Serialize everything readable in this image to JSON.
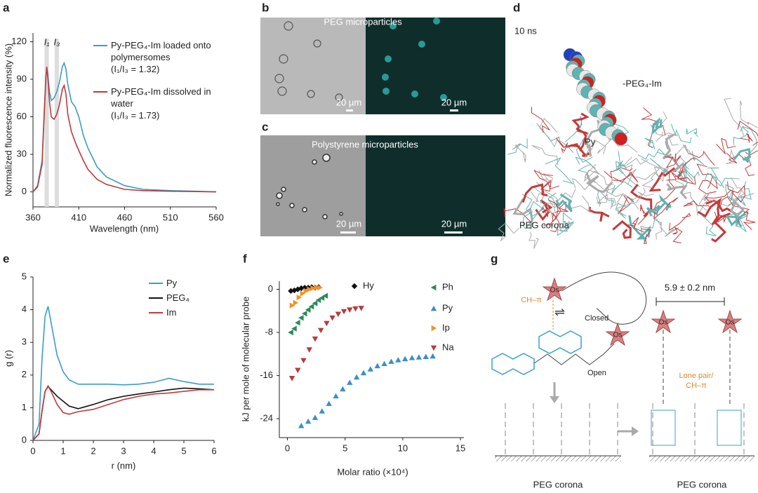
{
  "chart_data": [
    {
      "type": "line",
      "panel": "a",
      "xlabel": "Wavelength (nm)",
      "ylabel": "Normalized fluorescence intensity (%)",
      "x": [
        360,
        365,
        370,
        372,
        374,
        375,
        376,
        378,
        380,
        383,
        386,
        389,
        392,
        394,
        396,
        398,
        402,
        406,
        410,
        415,
        420,
        430,
        440,
        460,
        480,
        510,
        560
      ],
      "series": [
        {
          "name": "Py-PEG₄-Im loaded onto polymersomes",
          "note": "(I₁/I₃ = 1.32)",
          "color": "#3a9dc7",
          "values": [
            0,
            5,
            25,
            60,
            92,
            99,
            95,
            80,
            73,
            75,
            80,
            88,
            100,
            103,
            98,
            86,
            72,
            68,
            60,
            45,
            35,
            20,
            12,
            5,
            2,
            1,
            0
          ]
        },
        {
          "name": "Py-PEG₄-Im dissolved in water",
          "note": "(I₁/I₃ = 1.73)",
          "color": "#c0393b",
          "values": [
            0,
            4,
            22,
            58,
            90,
            100,
            93,
            72,
            60,
            58,
            62,
            70,
            82,
            85,
            78,
            62,
            48,
            40,
            33,
            25,
            18,
            10,
            6,
            2,
            1,
            0.5,
            0
          ]
        }
      ],
      "bands": [
        {
          "value": 375,
          "label": "I₁"
        },
        {
          "value": 386,
          "label": "I₃"
        }
      ],
      "xlim": [
        360,
        560
      ],
      "xticks": [
        360,
        410,
        460,
        510,
        560
      ],
      "ylim": [
        -12,
        127
      ],
      "yticks": [
        0,
        30,
        60,
        90,
        120
      ]
    },
    {
      "type": "line",
      "panel": "e",
      "xlabel": "r (nm)",
      "ylabel": "g (r)",
      "x": [
        0,
        0.2,
        0.3,
        0.4,
        0.5,
        0.6,
        0.8,
        1,
        1.2,
        1.5,
        2,
        2.5,
        3,
        3.5,
        4,
        4.5,
        5,
        5.5,
        6
      ],
      "series": [
        {
          "name": "Py",
          "color": "#3a9dc7",
          "values": [
            0,
            0.5,
            2.5,
            3.8,
            4.1,
            3.6,
            2.6,
            2.1,
            1.85,
            1.72,
            1.72,
            1.72,
            1.7,
            1.72,
            1.78,
            1.9,
            1.8,
            1.72,
            1.72
          ]
        },
        {
          "name": "PEG₄",
          "color": "#111111",
          "values": [
            0,
            0.2,
            0.9,
            1.5,
            1.65,
            1.55,
            1.35,
            1.2,
            1.05,
            0.97,
            1.1,
            1.25,
            1.35,
            1.42,
            1.48,
            1.55,
            1.6,
            1.58,
            1.55
          ]
        },
        {
          "name": "Im",
          "color": "#c0393b",
          "values": [
            0,
            0.2,
            0.9,
            1.5,
            1.67,
            1.5,
            1.1,
            0.85,
            0.8,
            0.88,
            0.95,
            1.1,
            1.25,
            1.35,
            1.42,
            1.45,
            1.5,
            1.55,
            1.55
          ]
        }
      ],
      "xlim": [
        0,
        6
      ],
      "xticks": [
        0,
        1,
        2,
        3,
        4,
        5,
        6
      ],
      "ylim": [
        0,
        5
      ],
      "yticks": [
        0,
        1,
        2,
        3,
        4,
        5
      ]
    },
    {
      "type": "scatter",
      "panel": "f",
      "xlabel": "Molar ratio (×10⁴)",
      "ylabel": "kJ per mole of molecular probe",
      "series": [
        {
          "name": "Hy",
          "color": "#111111",
          "marker": "diamond",
          "x": [
            0.3,
            0.6,
            0.9,
            1.2,
            1.5,
            1.8,
            2.1,
            2.4,
            2.7
          ],
          "values": [
            -0.3,
            -0.2,
            0,
            0.2,
            0.3,
            0.3,
            0.4,
            0.3,
            0.4
          ]
        },
        {
          "name": "Ph",
          "color": "#2a8a5a",
          "marker": "left",
          "x": [
            0.3,
            0.6,
            0.9,
            1.2,
            1.5,
            1.8,
            2.1,
            2.4,
            2.7,
            3.0,
            3.3
          ],
          "values": [
            -8,
            -7.3,
            -6.2,
            -5.3,
            -4.5,
            -3.8,
            -3.2,
            -2.6,
            -2,
            -1.6,
            -1.2
          ]
        },
        {
          "name": "Py",
          "color": "#3a8fc7",
          "marker": "up",
          "x": [
            1.2,
            1.8,
            2.4,
            3,
            3.6,
            4.2,
            4.8,
            5.4,
            6,
            6.6,
            7.2,
            7.8,
            8.4,
            9,
            9.6,
            10.2,
            10.8,
            11.4,
            12,
            12.6
          ],
          "values": [
            -25.3,
            -24.5,
            -23.8,
            -22.6,
            -21.2,
            -19.8,
            -18.5,
            -17.3,
            -16.3,
            -15.5,
            -14.8,
            -14.2,
            -13.8,
            -13.4,
            -13.1,
            -12.9,
            -12.7,
            -12.6,
            -12.5,
            -12.4
          ]
        },
        {
          "name": "Ip",
          "color": "#f0922a",
          "marker": "right",
          "x": [
            0.4,
            0.7,
            1.0,
            1.3,
            1.6,
            1.9,
            2.2,
            2.5,
            2.8
          ],
          "values": [
            -3,
            -2.5,
            -1.5,
            -0.8,
            -0.3,
            0,
            0.2,
            0.3,
            0.3
          ]
        },
        {
          "name": "Na",
          "color": "#b83a3a",
          "marker": "down",
          "x": [
            0.4,
            0.9,
            1.4,
            1.9,
            2.4,
            2.9,
            3.4,
            3.9,
            4.4,
            4.9,
            5.4,
            5.9,
            6.4
          ],
          "values": [
            -16.5,
            -15,
            -13.2,
            -11.2,
            -9.2,
            -7.6,
            -6.3,
            -5.3,
            -4.6,
            -4.1,
            -3.8,
            -3.6,
            -3.5
          ]
        }
      ],
      "xlim": [
        -0.7,
        15.3
      ],
      "xticks": [
        0,
        5,
        10,
        15
      ],
      "ylim": [
        -27.5,
        1.5
      ],
      "yticks": [
        0,
        -8,
        -16,
        -24
      ]
    }
  ],
  "panels": {
    "labels": [
      "a",
      "b",
      "c",
      "d",
      "e",
      "f",
      "g"
    ],
    "b": {
      "title": "PEG microparticles",
      "scale": [
        "20 µm",
        "20 µm"
      ]
    },
    "c": {
      "title": "Polystyrene microparticles",
      "scale": [
        "20 µm",
        "20 µm"
      ]
    },
    "d": {
      "time": "10 ns",
      "peg": "-PEG₄-Im",
      "py": "Py",
      "corona": "PEG corona"
    },
    "g": {
      "os": [
        "Os",
        "Os",
        "Os",
        "Os"
      ],
      "ch": "CH–π",
      "closed": "Closed",
      "open": "Open",
      "distance": "5.9 ± 0.2 nm",
      "lone": [
        "Lone pair/",
        "CH–π"
      ],
      "corona": [
        "PEG corona",
        "PEG corona"
      ]
    }
  }
}
